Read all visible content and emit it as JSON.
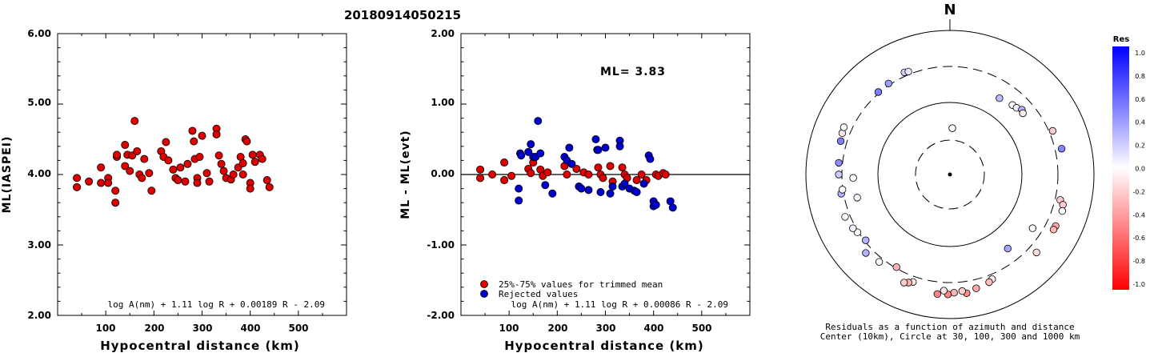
{
  "title": "20180914050215",
  "panels": {
    "left": {
      "ylabel": "ML(IASPEI)",
      "xlabel": "Hypocentral distance (km)",
      "yticks": [
        "2.00",
        "3.00",
        "4.00",
        "5.00",
        "6.00"
      ],
      "xticks": [
        "100",
        "200",
        "300",
        "400",
        "500"
      ],
      "formula": "log A(nm) + 1.11 log R + 0.00189 R - 2.09"
    },
    "middle": {
      "ylabel": "ML - ML(evt)",
      "xlabel": "Hypocentral distance (km)",
      "yticks": [
        "-2.00",
        "-1.00",
        "0.00",
        "1.00",
        "2.00"
      ],
      "xticks": [
        "100",
        "200",
        "300",
        "400",
        "500"
      ],
      "ml_label": "ML= 3.83",
      "legend": [
        "25%-75% values for trimmed mean",
        "Rejected values"
      ],
      "formula": "log A(nm) + 1.11 log R + 0.00086 R - 2.09"
    },
    "polar": {
      "north": "N",
      "caption1": "Residuals as a function of azimuth and distance",
      "caption2": "Center (10km), Circle at 30, 100, 300 and 1000 km"
    },
    "colorbar": {
      "title": "Res",
      "ticks": [
        "1.0",
        "0.8",
        "0.6",
        "0.4",
        "0.2",
        "0.0",
        "-0.2",
        "-0.4",
        "-0.6",
        "-0.8",
        "-1.0"
      ]
    }
  },
  "colors": {
    "trimmed": "#dd0000",
    "rejected": "#0000cc"
  },
  "chart_data": [
    {
      "type": "scatter",
      "title": "20180914050215",
      "xlabel": "Hypocentral distance (km)",
      "ylabel": "ML(IASPEI)",
      "xlim": [
        0,
        600
      ],
      "ylim": [
        2,
        6
      ],
      "series": [
        {
          "values": [
            [
              40,
              3.95
            ],
            [
              40,
              3.82
            ],
            [
              65,
              3.9
            ],
            [
              90,
              4.1
            ],
            [
              90,
              3.88
            ],
            [
              105,
              3.95
            ],
            [
              105,
              3.88
            ],
            [
              120,
              3.77
            ],
            [
              120,
              3.6
            ],
            [
              123,
              4.25
            ],
            [
              123,
              4.28
            ],
            [
              140,
              4.42
            ],
            [
              140,
              4.12
            ],
            [
              145,
              4.28
            ],
            [
              150,
              4.05
            ],
            [
              155,
              4.27
            ],
            [
              160,
              4.76
            ],
            [
              165,
              4.33
            ],
            [
              170,
              4.0
            ],
            [
              175,
              3.95
            ],
            [
              180,
              4.22
            ],
            [
              190,
              4.02
            ],
            [
              195,
              3.77
            ],
            [
              215,
              4.33
            ],
            [
              220,
              4.25
            ],
            [
              225,
              4.46
            ],
            [
              230,
              4.2
            ],
            [
              240,
              4.07
            ],
            [
              245,
              3.95
            ],
            [
              250,
              3.92
            ],
            [
              255,
              4.1
            ],
            [
              265,
              3.9
            ],
            [
              270,
              4.15
            ],
            [
              280,
              4.62
            ],
            [
              283,
              4.47
            ],
            [
              285,
              4.22
            ],
            [
              290,
              3.95
            ],
            [
              290,
              3.88
            ],
            [
              295,
              4.25
            ],
            [
              300,
              4.55
            ],
            [
              310,
              4.02
            ],
            [
              315,
              3.9
            ],
            [
              330,
              4.65
            ],
            [
              330,
              4.57
            ],
            [
              335,
              4.27
            ],
            [
              340,
              4.15
            ],
            [
              345,
              4.05
            ],
            [
              350,
              3.95
            ],
            [
              360,
              3.93
            ],
            [
              365,
              4.0
            ],
            [
              375,
              4.1
            ],
            [
              380,
              4.25
            ],
            [
              385,
              4.16
            ],
            [
              385,
              4.0
            ],
            [
              390,
              4.5
            ],
            [
              393,
              4.47
            ],
            [
              400,
              3.88
            ],
            [
              400,
              3.8
            ],
            [
              405,
              4.28
            ],
            [
              410,
              4.18
            ],
            [
              420,
              4.28
            ],
            [
              425,
              4.22
            ],
            [
              435,
              3.92
            ],
            [
              440,
              3.82
            ]
          ]
        }
      ]
    },
    {
      "type": "scatter",
      "xlabel": "Hypocentral distance (km)",
      "ylabel": "ML - ML(evt)",
      "xlim": [
        0,
        600
      ],
      "ylim": [
        -2,
        2
      ],
      "series": [
        {
          "name": "25%-75% values for trimmed mean",
          "values": [
            [
              40,
              0.07
            ],
            [
              40,
              -0.05
            ],
            [
              65,
              0.0
            ],
            [
              90,
              0.17
            ],
            [
              90,
              -0.08
            ],
            [
              105,
              -0.02
            ],
            [
              140,
              0.08
            ],
            [
              145,
              0.02
            ],
            [
              150,
              0.17
            ],
            [
              165,
              0.07
            ],
            [
              170,
              -0.02
            ],
            [
              180,
              0.03
            ],
            [
              215,
              0.12
            ],
            [
              220,
              0.0
            ],
            [
              240,
              0.08
            ],
            [
              255,
              0.03
            ],
            [
              265,
              0.0
            ],
            [
              285,
              0.1
            ],
            [
              290,
              0.0
            ],
            [
              295,
              -0.05
            ],
            [
              310,
              0.12
            ],
            [
              315,
              -0.1
            ],
            [
              335,
              0.1
            ],
            [
              340,
              0.0
            ],
            [
              345,
              -0.05
            ],
            [
              365,
              -0.08
            ],
            [
              375,
              0.0
            ],
            [
              385,
              -0.08
            ],
            [
              405,
              0.0
            ],
            [
              410,
              -0.02
            ],
            [
              420,
              0.02
            ],
            [
              425,
              0.0
            ]
          ]
        },
        {
          "name": "Rejected values",
          "values": [
            [
              120,
              -0.2
            ],
            [
              120,
              -0.37
            ],
            [
              123,
              0.3
            ],
            [
              125,
              0.27
            ],
            [
              140,
              0.32
            ],
            [
              145,
              0.43
            ],
            [
              150,
              0.25
            ],
            [
              155,
              0.25
            ],
            [
              160,
              0.76
            ],
            [
              165,
              0.3
            ],
            [
              175,
              -0.15
            ],
            [
              190,
              -0.27
            ],
            [
              215,
              0.25
            ],
            [
              220,
              0.2
            ],
            [
              225,
              0.38
            ],
            [
              230,
              0.15
            ],
            [
              245,
              -0.17
            ],
            [
              250,
              -0.2
            ],
            [
              265,
              -0.22
            ],
            [
              280,
              0.5
            ],
            [
              283,
              0.35
            ],
            [
              285,
              0.35
            ],
            [
              290,
              -0.25
            ],
            [
              300,
              0.38
            ],
            [
              310,
              -0.27
            ],
            [
              315,
              -0.17
            ],
            [
              330,
              0.48
            ],
            [
              330,
              0.4
            ],
            [
              335,
              -0.17
            ],
            [
              340,
              -0.13
            ],
            [
              350,
              -0.2
            ],
            [
              360,
              -0.23
            ],
            [
              365,
              -0.25
            ],
            [
              380,
              -0.13
            ],
            [
              390,
              0.27
            ],
            [
              393,
              0.22
            ],
            [
              400,
              -0.38
            ],
            [
              400,
              -0.45
            ],
            [
              405,
              -0.43
            ],
            [
              435,
              -0.38
            ],
            [
              440,
              -0.47
            ]
          ]
        }
      ]
    },
    {
      "type": "scatter",
      "xlabel": "",
      "ylabel": "",
      "series": [
        {
          "values": [
            {
              "az": 3,
              "dist": 44,
              "res": 0.0
            },
            {
              "az": 33,
              "dist": 178,
              "res": 0.27
            },
            {
              "az": 42,
              "dist": 192,
              "res": 0.0
            },
            {
              "az": 45,
              "dist": 197,
              "res": 0.06
            },
            {
              "az": 48,
              "dist": 213,
              "res": 0.3
            },
            {
              "az": 50,
              "dist": 203,
              "res": -0.06
            },
            {
              "az": 67,
              "dist": 338,
              "res": -0.2
            },
            {
              "az": 77,
              "dist": 374,
              "res": 0.48
            },
            {
              "az": 103,
              "dist": 357,
              "res": -0.2
            },
            {
              "az": 105,
              "dist": 405,
              "res": -0.2
            },
            {
              "az": 108,
              "dist": 420,
              "res": 0.0
            },
            {
              "az": 116,
              "dist": 413,
              "res": -0.35
            },
            {
              "az": 118,
              "dist": 410,
              "res": -0.3
            },
            {
              "az": 123,
              "dist": 225,
              "res": -0.02
            },
            {
              "az": 132,
              "dist": 398,
              "res": -0.15
            },
            {
              "az": 142,
              "dist": 195,
              "res": 0.35
            },
            {
              "az": 158,
              "dist": 352,
              "res": -0.08
            },
            {
              "az": 160,
              "dist": 373,
              "res": -0.25
            },
            {
              "az": 167,
              "dist": 402,
              "res": -0.35
            },
            {
              "az": 172,
              "dist": 445,
              "res": -0.45
            },
            {
              "az": 174,
              "dist": 407,
              "res": -0.18
            },
            {
              "az": 178,
              "dist": 422,
              "res": -0.3
            },
            {
              "az": 181,
              "dist": 446,
              "res": -0.48
            },
            {
              "az": 183,
              "dist": 395,
              "res": -0.1
            },
            {
              "az": 186,
              "dist": 450,
              "res": -0.48
            },
            {
              "az": 199,
              "dist": 362,
              "res": -0.1
            },
            {
              "az": 201,
              "dist": 388,
              "res": -0.3
            },
            {
              "az": 203,
              "dist": 410,
              "res": -0.2
            },
            {
              "az": 210,
              "dist": 290,
              "res": -0.3
            },
            {
              "az": 219,
              "dist": 347,
              "res": 0.0
            },
            {
              "az": 227,
              "dist": 379,
              "res": 0.3
            },
            {
              "az": 232,
              "dist": 290,
              "res": 0.3
            },
            {
              "az": 238,
              "dist": 310,
              "res": 0.0
            },
            {
              "az": 241,
              "dist": 330,
              "res": 0.06
            },
            {
              "az": 248,
              "dist": 355,
              "res": 0.0
            },
            {
              "az": 256,
              "dist": 205,
              "res": 0.06
            },
            {
              "az": 260,
              "dist": 324,
              "res": 0.3
            },
            {
              "az": 262,
              "dist": 305,
              "res": 0.0
            },
            {
              "az": 268,
              "dist": 213,
              "res": 0.0
            },
            {
              "az": 270,
              "dist": 333,
              "res": 0.2
            },
            {
              "az": 276,
              "dist": 340,
              "res": 0.45
            },
            {
              "az": 287,
              "dist": 369,
              "res": 0.5
            },
            {
              "az": 291,
              "dist": 383,
              "res": -0.1
            },
            {
              "az": 294,
              "dist": 393,
              "res": 0.0
            },
            {
              "az": 319,
              "dist": 312,
              "res": 0.5
            },
            {
              "az": 326,
              "dist": 318,
              "res": 0.38
            },
            {
              "az": 336,
              "dist": 340,
              "res": 0.18
            },
            {
              "az": 338,
              "dist": 331,
              "res": 0.1
            }
          ]
        }
      ]
    }
  ]
}
